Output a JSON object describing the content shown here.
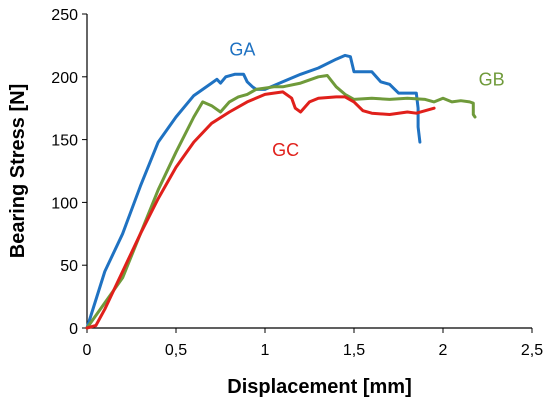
{
  "chart_data": {
    "type": "line",
    "xlabel": "Displacement [mm]",
    "ylabel": "Bearing Stress [N]",
    "xlim": [
      0,
      2.5
    ],
    "ylim": [
      0,
      250
    ],
    "xticks": [
      "0",
      "0,5",
      "1",
      "1,5",
      "2",
      "2,5"
    ],
    "yticks": [
      "0",
      "50",
      "100",
      "150",
      "200",
      "250"
    ],
    "grid": false,
    "series": [
      {
        "name": "GA",
        "color": "#1f72c2",
        "x": [
          0,
          0.1,
          0.2,
          0.3,
          0.4,
          0.5,
          0.6,
          0.7,
          0.73,
          0.75,
          0.78,
          0.83,
          0.88,
          0.9,
          0.93,
          0.95,
          1.0,
          1.1,
          1.2,
          1.3,
          1.4,
          1.45,
          1.48,
          1.5,
          1.52,
          1.6,
          1.65,
          1.7,
          1.75,
          1.8,
          1.85,
          1.86,
          1.86,
          1.87,
          1.87
        ],
        "y": [
          0,
          45,
          75,
          113,
          148,
          168,
          185,
          195,
          198,
          195,
          200,
          202,
          202,
          196,
          192,
          190,
          190,
          196,
          202,
          207,
          214,
          217,
          216,
          204,
          204,
          204,
          196,
          194,
          187,
          187,
          187,
          175,
          160,
          148,
          148
        ]
      },
      {
        "name": "GB",
        "color": "#6f9a3a",
        "x": [
          0,
          0.1,
          0.2,
          0.3,
          0.4,
          0.5,
          0.6,
          0.65,
          0.7,
          0.75,
          0.8,
          0.85,
          0.9,
          0.95,
          1.0,
          1.05,
          1.1,
          1.2,
          1.3,
          1.35,
          1.4,
          1.45,
          1.5,
          1.6,
          1.7,
          1.8,
          1.9,
          1.95,
          2.0,
          2.05,
          2.1,
          2.15,
          2.17,
          2.17,
          2.18
        ],
        "y": [
          0,
          20,
          40,
          75,
          110,
          140,
          168,
          180,
          177,
          172,
          180,
          184,
          186,
          190,
          191,
          192,
          192,
          195,
          200,
          201,
          192,
          186,
          182,
          183,
          182,
          183,
          182,
          180,
          183,
          180,
          181,
          180,
          179,
          170,
          168
        ]
      },
      {
        "name": "GC",
        "color": "#e0201b",
        "x": [
          0,
          0.05,
          0.1,
          0.2,
          0.3,
          0.4,
          0.5,
          0.6,
          0.7,
          0.8,
          0.9,
          1.0,
          1.1,
          1.15,
          1.17,
          1.2,
          1.25,
          1.3,
          1.4,
          1.45,
          1.5,
          1.55,
          1.6,
          1.7,
          1.8,
          1.85,
          1.9,
          1.95
        ],
        "y": [
          0,
          2,
          15,
          45,
          75,
          103,
          128,
          148,
          163,
          172,
          180,
          186,
          188,
          183,
          175,
          172,
          180,
          183,
          184,
          184,
          180,
          173,
          171,
          170,
          172,
          171,
          173,
          175
        ]
      }
    ]
  }
}
